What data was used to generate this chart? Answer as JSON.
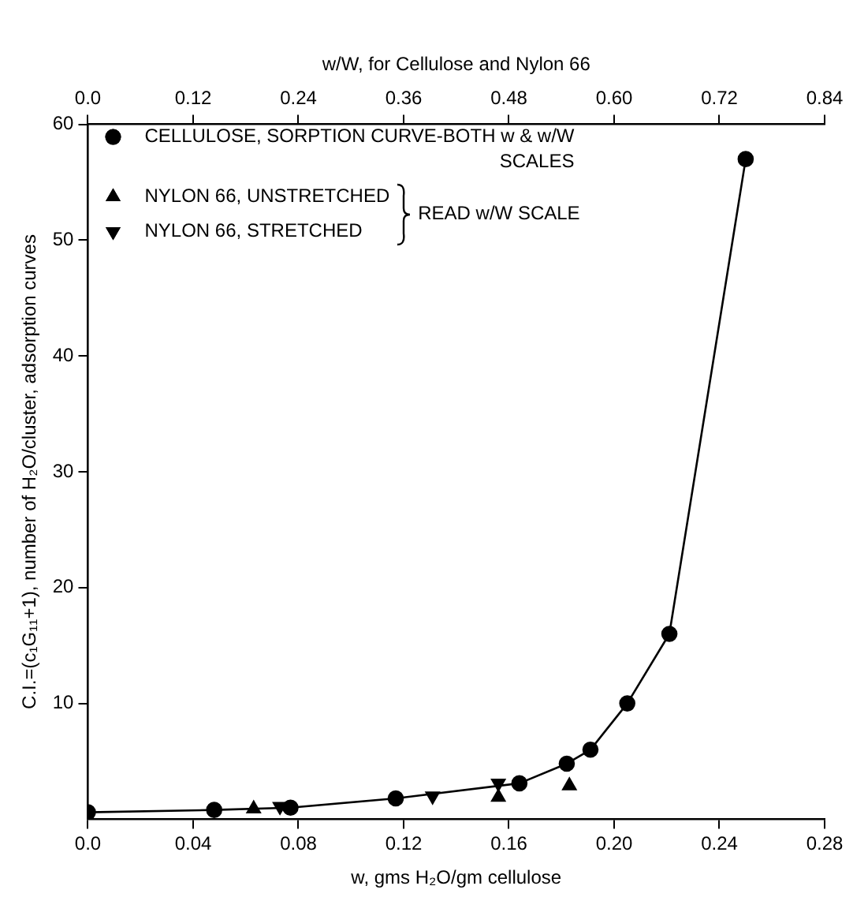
{
  "chart_data": {
    "type": "scatter",
    "xlabel": "w, gms H₂O/gm cellulose",
    "ylabel": "C.I.=(c₁G₁₁+1), number of H₂O/cluster, adsorption curves",
    "x2label": "w/W, for Cellulose and Nylon 66",
    "xlim": [
      0,
      0.28
    ],
    "xticks": [
      {
        "value": 0,
        "label": "0.0"
      },
      0.04,
      0.08,
      0.12,
      0.16,
      {
        "value": 0.2,
        "label": "0.20"
      },
      0.24,
      0.28
    ],
    "ylim": [
      0,
      60
    ],
    "yticks": [
      10,
      20,
      30,
      40,
      50,
      60
    ],
    "x2lim": [
      0,
      0.84
    ],
    "x2ticks": [
      {
        "value": 0,
        "label": "0.0"
      },
      0.12,
      0.24,
      0.36,
      0.48,
      {
        "value": 0.6,
        "label": "0.60"
      },
      0.72,
      0.84
    ],
    "series": [
      {
        "name": "CELLULOSE, SORPTION CURVE-BOTH w & w/W SCALES",
        "type": "line",
        "color": "#000000",
        "marker": "circle",
        "line_style": "solid",
        "x": [
          0,
          0.048,
          0.077,
          0.117,
          0.164,
          0.182,
          0.191,
          0.205,
          0.221,
          0.25
        ],
        "values": [
          0.6,
          0.8,
          1,
          1.8,
          3.1,
          4.8,
          6,
          10,
          16,
          57
        ]
      },
      {
        "name": "NYLON 66, UNSTRETCHED",
        "color": "#000000",
        "marker": "triangle",
        "x": [
          0.063,
          0.156,
          0.183
        ],
        "values": [
          0.9,
          1.9,
          2.9
        ]
      },
      {
        "name": "NYLON 66, STRETCHED",
        "color": "#000000",
        "marker": "triangle-down",
        "x": [
          0.073,
          0.131,
          0.156
        ],
        "values": [
          1.1,
          2,
          3.1
        ]
      }
    ],
    "annotations": [
      "READ w/W SCALE"
    ],
    "legend": "top left",
    "grid": false
  }
}
